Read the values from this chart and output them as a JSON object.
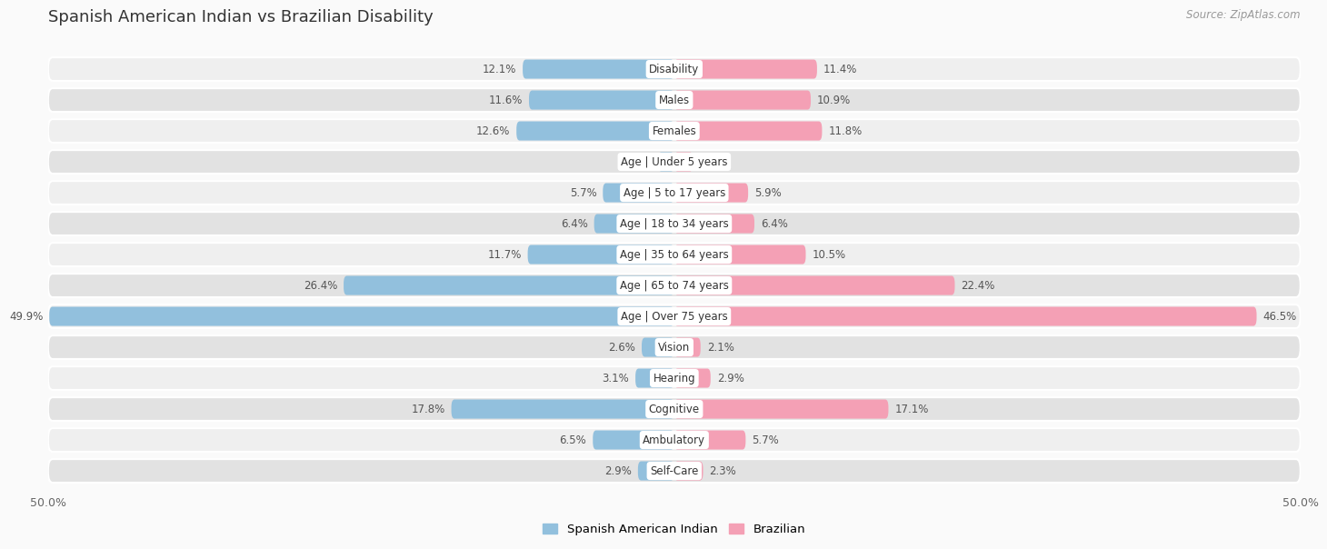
{
  "title": "Spanish American Indian vs Brazilian Disability",
  "source": "Source: ZipAtlas.com",
  "categories": [
    "Disability",
    "Males",
    "Females",
    "Age | Under 5 years",
    "Age | 5 to 17 years",
    "Age | 18 to 34 years",
    "Age | 35 to 64 years",
    "Age | 65 to 74 years",
    "Age | Over 75 years",
    "Vision",
    "Hearing",
    "Cognitive",
    "Ambulatory",
    "Self-Care"
  ],
  "left_values": [
    12.1,
    11.6,
    12.6,
    1.3,
    5.7,
    6.4,
    11.7,
    26.4,
    49.9,
    2.6,
    3.1,
    17.8,
    6.5,
    2.9
  ],
  "right_values": [
    11.4,
    10.9,
    11.8,
    1.5,
    5.9,
    6.4,
    10.5,
    22.4,
    46.5,
    2.1,
    2.9,
    17.1,
    5.7,
    2.3
  ],
  "left_color": "#92C0DD",
  "right_color": "#F4A0B5",
  "left_label": "Spanish American Indian",
  "right_label": "Brazilian",
  "max_val": 50.0,
  "row_bg_light": "#EFEFEF",
  "row_bg_dark": "#E2E2E2",
  "fig_bg": "#FAFAFA"
}
